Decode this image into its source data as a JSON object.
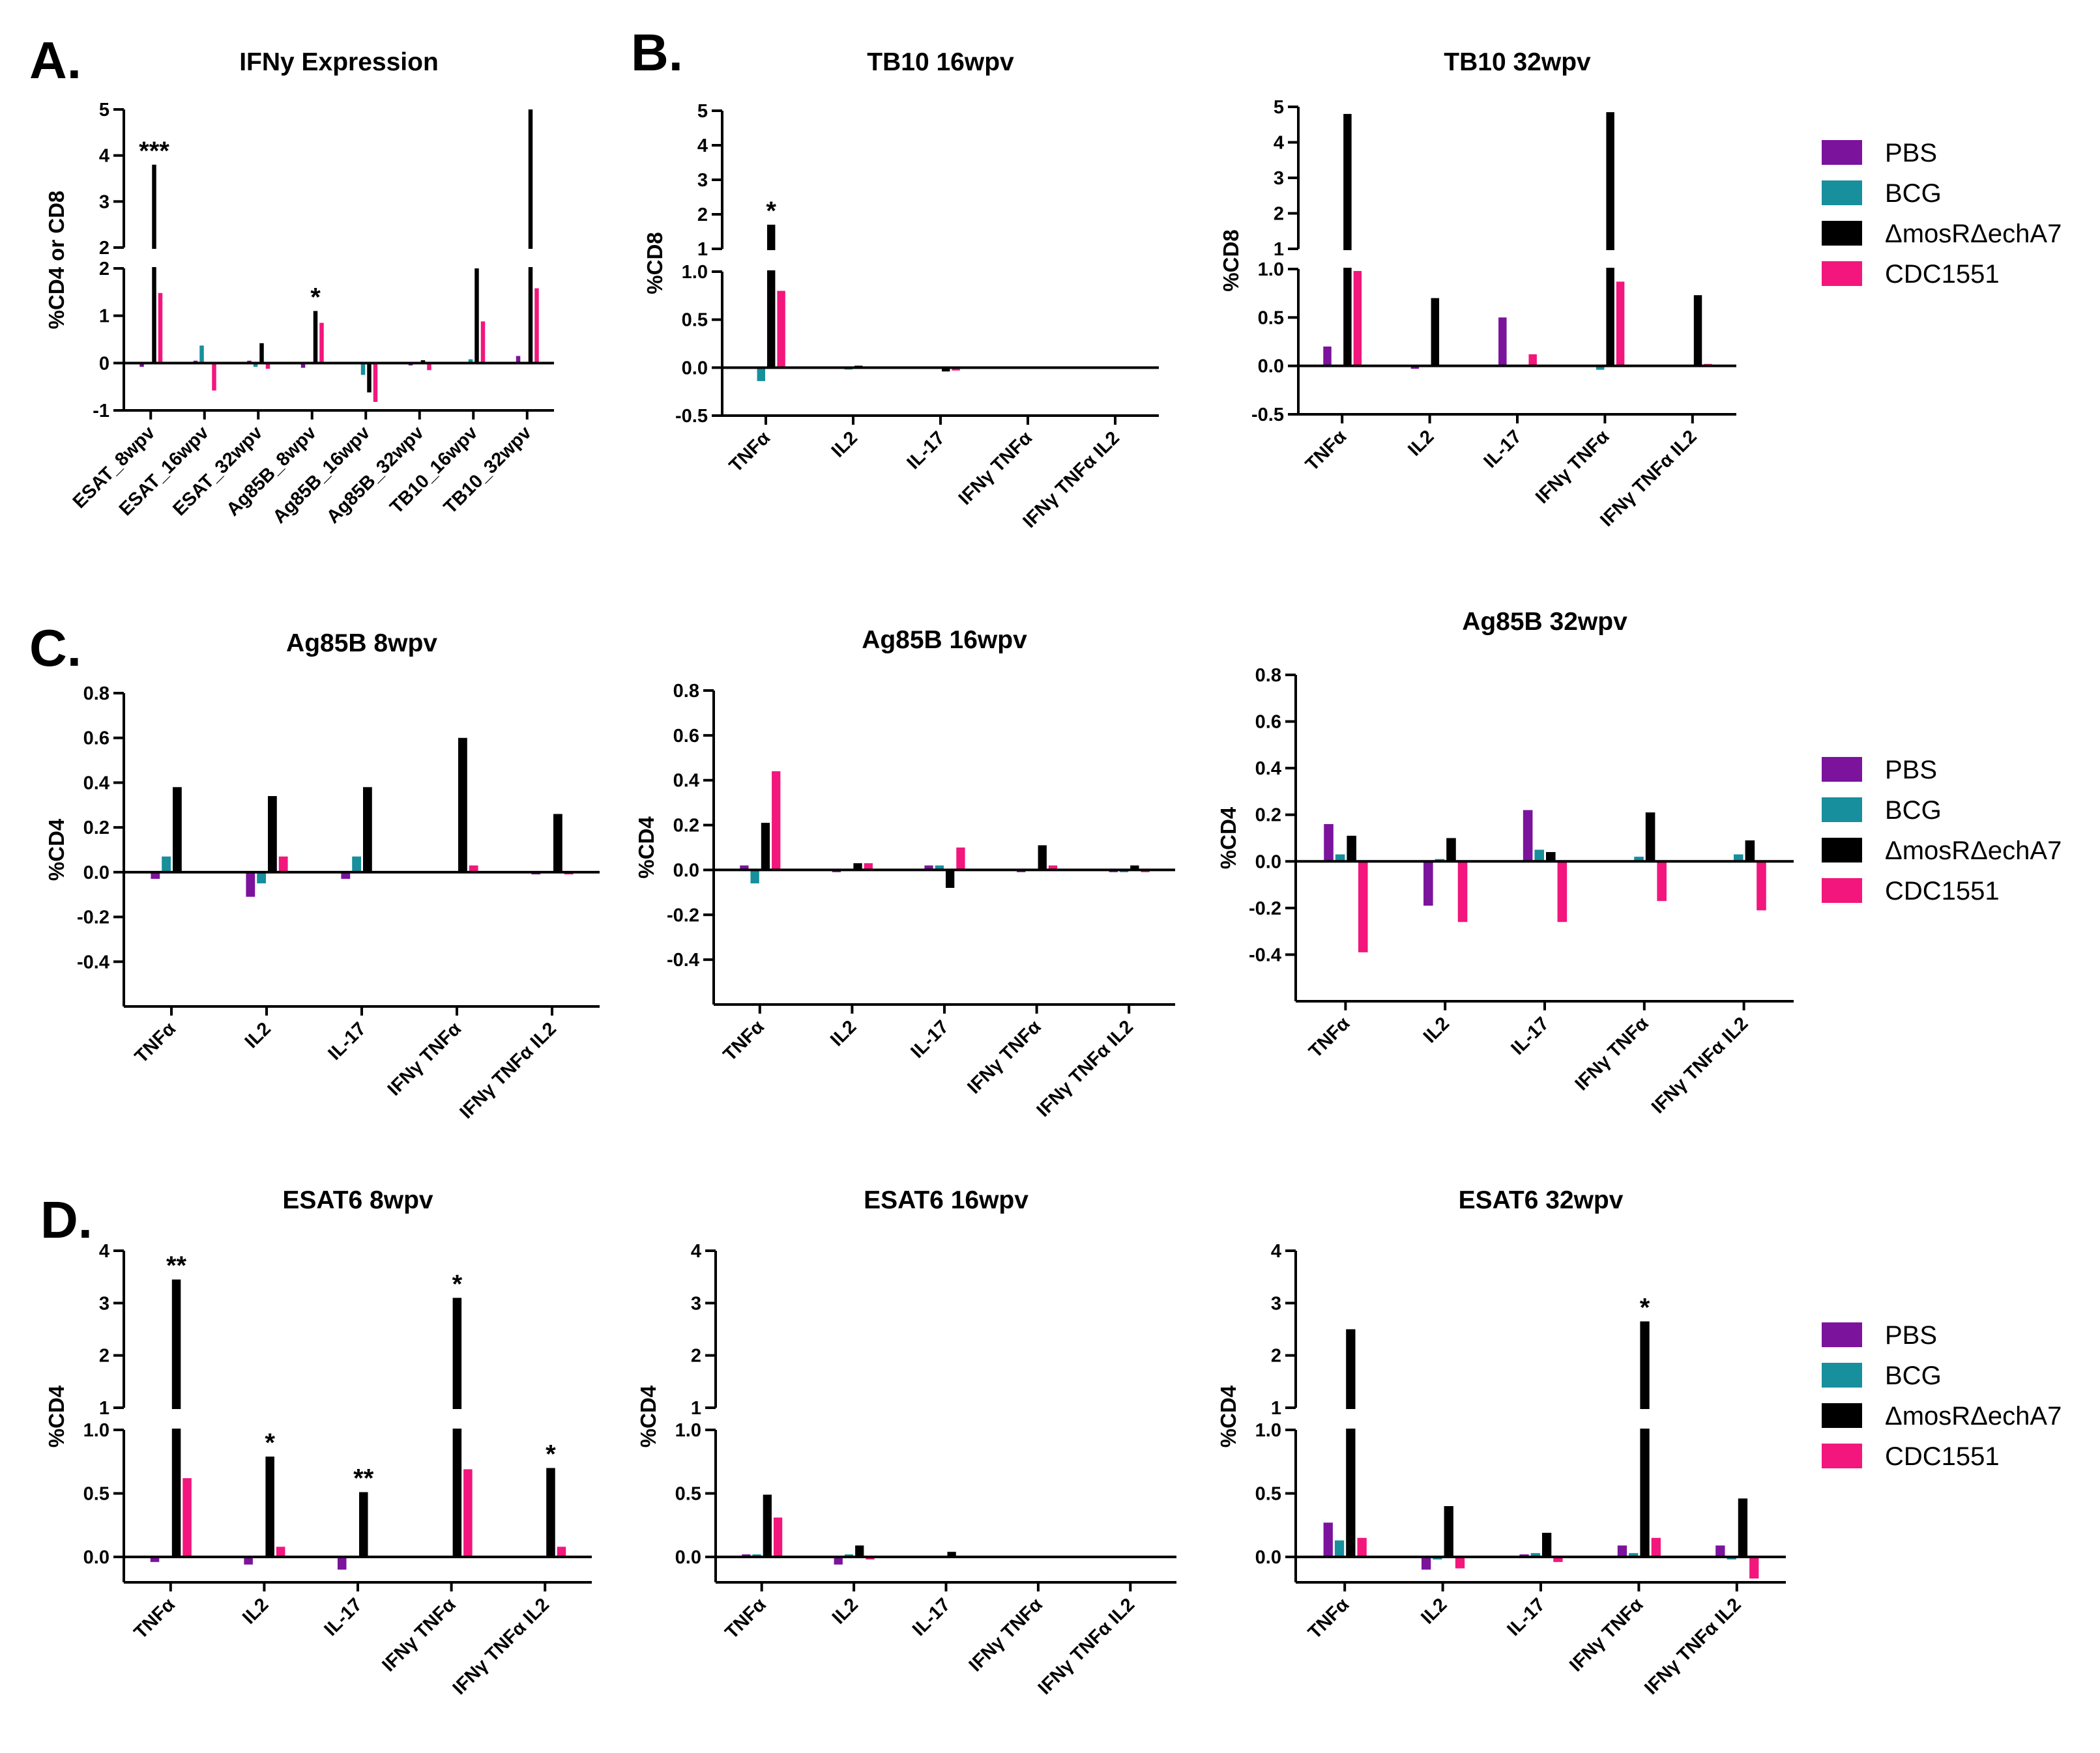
{
  "colors": {
    "PBS": "#7b139c",
    "BCG": "#178f9c",
    "mut": "#000000",
    "CDC": "#f2167d"
  },
  "panel_letters": [
    "A.",
    "B.",
    "C.",
    "D."
  ],
  "legend": {
    "items": [
      {
        "key": "PBS",
        "label": "PBS"
      },
      {
        "key": "BCG",
        "label": "BCG"
      },
      {
        "key": "mut",
        "label": "ΔmosRΔechA7"
      },
      {
        "key": "CDC",
        "label": "CDC1551"
      }
    ]
  },
  "chart_data": [
    {
      "id": "A",
      "type": "bar",
      "title": "IFNy Expression",
      "ylabel": "%CD4 or CD8",
      "categories": [
        "ESAT_8wpv",
        "ESAT_16wpv",
        "ESAT_32wpv",
        "Ag85B_8wpv",
        "Ag85B_16wpv",
        "Ag85B_32wpv",
        "TB10_16wpv",
        "TB10_32wpv"
      ],
      "ylim_lower": [
        -1,
        2
      ],
      "ylim_upper": [
        2,
        5
      ],
      "yticks_lower": [
        "-1",
        "0",
        "1",
        "2"
      ],
      "yticks_upper": [
        "2",
        "3",
        "4",
        "5"
      ],
      "series": [
        {
          "name": "PBS",
          "values": [
            -0.08,
            0.05,
            0.05,
            -0.1,
            0.02,
            -0.05,
            0.02,
            0.15
          ]
        },
        {
          "name": "BCG",
          "values": [
            0.02,
            0.37,
            -0.08,
            0.0,
            -0.25,
            0.02,
            0.08,
            0.02
          ]
        },
        {
          "name": "ΔmosRΔechA7",
          "values": [
            3.8,
            0.02,
            0.42,
            1.1,
            -0.62,
            0.06,
            2.0,
            5.0
          ]
        },
        {
          "name": "CDC1551",
          "values": [
            1.48,
            -0.58,
            -0.12,
            0.85,
            -0.82,
            -0.15,
            0.88,
            1.58
          ]
        }
      ],
      "annotations": [
        {
          "cat": 0,
          "text": "***"
        },
        {
          "cat": 3,
          "text": "*"
        }
      ]
    },
    {
      "id": "B1",
      "type": "bar",
      "title": "TB10 16wpv",
      "ylabel": "%CD8",
      "categories": [
        "TNFα",
        "IL2",
        "IL-17",
        "IFNγ TNFα",
        "IFNγ TNFα IL2"
      ],
      "ylim_lower": [
        -0.5,
        1.0
      ],
      "ylim_upper": [
        1,
        5
      ],
      "yticks_lower": [
        "-0.5",
        "0.0",
        "0.5",
        "1.0"
      ],
      "yticks_upper": [
        "1",
        "2",
        "3",
        "4",
        "5"
      ],
      "series": [
        {
          "name": "PBS",
          "values": [
            -0.01,
            0.0,
            0.0,
            0.0,
            0.0
          ]
        },
        {
          "name": "BCG",
          "values": [
            -0.14,
            -0.02,
            -0.01,
            0.0,
            0.0
          ]
        },
        {
          "name": "ΔmosRΔechA7",
          "values": [
            1.7,
            0.02,
            -0.04,
            0.0,
            0.0
          ]
        },
        {
          "name": "CDC1551",
          "values": [
            0.8,
            0.0,
            -0.03,
            0.0,
            0.0
          ]
        }
      ],
      "annotations": [
        {
          "cat": 0,
          "text": "*"
        }
      ]
    },
    {
      "id": "B2",
      "type": "bar",
      "title": "TB10 32wpv",
      "ylabel": "%CD8",
      "categories": [
        "TNFα",
        "IL2",
        "IL-17",
        "IFNγ TNFα",
        "IFNγ TNFα IL2"
      ],
      "ylim_lower": [
        -0.5,
        1.0
      ],
      "ylim_upper": [
        1,
        5
      ],
      "yticks_lower": [
        "-0.5",
        "0.0",
        "0.5",
        "1.0"
      ],
      "yticks_upper": [
        "1",
        "2",
        "3",
        "4",
        "5"
      ],
      "series": [
        {
          "name": "PBS",
          "values": [
            0.2,
            -0.03,
            0.5,
            0.0,
            0.0
          ]
        },
        {
          "name": "BCG",
          "values": [
            0.0,
            0.01,
            0.01,
            -0.04,
            0.0
          ]
        },
        {
          "name": "ΔmosRΔechA7",
          "values": [
            4.8,
            0.7,
            0.0,
            4.85,
            0.73
          ]
        },
        {
          "name": "CDC1551",
          "values": [
            0.98,
            0.01,
            0.12,
            0.87,
            0.02
          ]
        }
      ],
      "annotations": []
    },
    {
      "id": "C1",
      "type": "bar",
      "title": "Ag85B 8wpv",
      "ylabel": "%CD4",
      "categories": [
        "TNFα",
        "IL2",
        "IL-17",
        "IFNγ TNFα",
        "IFNγ TNFα IL2"
      ],
      "ylim": [
        -0.6,
        0.8
      ],
      "yticks": [
        "-0.4",
        "-0.2",
        "0.0",
        "0.2",
        "0.4",
        "0.6",
        "0.8"
      ],
      "series": [
        {
          "name": "PBS",
          "values": [
            -0.03,
            -0.11,
            -0.03,
            0.0,
            -0.01
          ]
        },
        {
          "name": "BCG",
          "values": [
            0.07,
            -0.05,
            0.07,
            0.0,
            0.0
          ]
        },
        {
          "name": "ΔmosRΔechA7",
          "values": [
            0.38,
            0.34,
            0.38,
            0.6,
            0.26
          ]
        },
        {
          "name": "CDC1551",
          "values": [
            0.0,
            0.07,
            0.0,
            0.03,
            -0.01
          ]
        }
      ],
      "annotations": []
    },
    {
      "id": "C2",
      "type": "bar",
      "title": "Ag85B 16wpv",
      "ylabel": "%CD4",
      "categories": [
        "TNFα",
        "IL2",
        "IL-17",
        "IFNγ TNFα",
        "IFNγ TNFα IL2"
      ],
      "ylim": [
        -0.6,
        0.8
      ],
      "yticks": [
        "-0.4",
        "-0.2",
        "0.0",
        "0.2",
        "0.4",
        "0.6",
        "0.8"
      ],
      "series": [
        {
          "name": "PBS",
          "values": [
            0.02,
            -0.01,
            0.02,
            -0.01,
            -0.01
          ]
        },
        {
          "name": "BCG",
          "values": [
            -0.06,
            0.0,
            0.02,
            0.0,
            -0.01
          ]
        },
        {
          "name": "ΔmosRΔechA7",
          "values": [
            0.21,
            0.03,
            -0.08,
            0.11,
            0.02
          ]
        },
        {
          "name": "CDC1551",
          "values": [
            0.44,
            0.03,
            0.1,
            0.02,
            -0.01
          ]
        }
      ],
      "annotations": []
    },
    {
      "id": "C3",
      "type": "bar",
      "title": "Ag85B 32wpv",
      "ylabel": "%CD4",
      "categories": [
        "TNFα",
        "IL2",
        "IL-17",
        "IFNγ TNFα",
        "IFNγ TNFα IL2"
      ],
      "ylim": [
        -0.6,
        0.8
      ],
      "yticks": [
        "-0.4",
        "-0.2",
        "0.0",
        "0.2",
        "0.4",
        "0.6",
        "0.8"
      ],
      "series": [
        {
          "name": "PBS",
          "values": [
            0.16,
            -0.19,
            0.22,
            0.0,
            0.0
          ]
        },
        {
          "name": "BCG",
          "values": [
            0.03,
            0.01,
            0.05,
            0.02,
            0.03
          ]
        },
        {
          "name": "ΔmosRΔechA7",
          "values": [
            0.11,
            0.1,
            0.04,
            0.21,
            0.09
          ]
        },
        {
          "name": "CDC1551",
          "values": [
            -0.39,
            -0.26,
            -0.26,
            -0.17,
            -0.21
          ]
        }
      ],
      "annotations": []
    },
    {
      "id": "D1",
      "type": "bar",
      "title": "ESAT6 8wpv",
      "ylabel": "%CD4",
      "categories": [
        "TNFα",
        "IL2",
        "IL-17",
        "IFNγ TNFα",
        "IFNγ TNFα IL2"
      ],
      "ylim_lower": [
        -0.2,
        1.0
      ],
      "ylim_upper": [
        1,
        4
      ],
      "yticks_lower": [
        "0.0",
        "0.5",
        "1.0"
      ],
      "yticks_upper": [
        "1",
        "2",
        "3",
        "4"
      ],
      "series": [
        {
          "name": "PBS",
          "values": [
            -0.04,
            -0.06,
            -0.1,
            0.0,
            0.01
          ]
        },
        {
          "name": "BCG",
          "values": [
            0.01,
            0.0,
            0.01,
            0.0,
            0.0
          ]
        },
        {
          "name": "ΔmosRΔechA7",
          "values": [
            3.45,
            0.79,
            0.51,
            3.1,
            0.7
          ]
        },
        {
          "name": "CDC1551",
          "values": [
            0.62,
            0.08,
            0.01,
            0.69,
            0.08
          ]
        }
      ],
      "annotations": [
        {
          "cat": 0,
          "text": "**"
        },
        {
          "cat": 1,
          "text": "*"
        },
        {
          "cat": 2,
          "text": "**"
        },
        {
          "cat": 3,
          "text": "*"
        },
        {
          "cat": 4,
          "text": "*"
        }
      ]
    },
    {
      "id": "D2",
      "type": "bar",
      "title": "ESAT6 16wpv",
      "ylabel": "%CD4",
      "categories": [
        "TNFα",
        "IL2",
        "IL-17",
        "IFNγ TNFα",
        "IFNγ TNFα IL2"
      ],
      "ylim_lower": [
        -0.2,
        1.0
      ],
      "ylim_upper": [
        1,
        4
      ],
      "yticks_lower": [
        "0.0",
        "0.5",
        "1.0"
      ],
      "yticks_upper": [
        "1",
        "2",
        "3",
        "4"
      ],
      "series": [
        {
          "name": "PBS",
          "values": [
            0.02,
            -0.06,
            0.0,
            0.0,
            0.0
          ]
        },
        {
          "name": "BCG",
          "values": [
            0.02,
            0.02,
            0.0,
            0.0,
            0.0
          ]
        },
        {
          "name": "ΔmosRΔechA7",
          "values": [
            0.49,
            0.09,
            0.04,
            0.0,
            0.0
          ]
        },
        {
          "name": "CDC1551",
          "values": [
            0.31,
            -0.02,
            0.0,
            0.0,
            0.0
          ]
        }
      ],
      "annotations": []
    },
    {
      "id": "D3",
      "type": "bar",
      "title": "ESAT6 32wpv",
      "ylabel": "%CD4",
      "categories": [
        "TNFα",
        "IL2",
        "IL-17",
        "IFNγ TNFα",
        "IFNγ TNFα IL2"
      ],
      "ylim_lower": [
        -0.2,
        1.0
      ],
      "ylim_upper": [
        1,
        4
      ],
      "yticks_lower": [
        "0.0",
        "0.5",
        "1.0"
      ],
      "yticks_upper": [
        "1",
        "2",
        "3",
        "4"
      ],
      "series": [
        {
          "name": "PBS",
          "values": [
            0.27,
            -0.1,
            0.02,
            0.09,
            0.09
          ]
        },
        {
          "name": "BCG",
          "values": [
            0.13,
            -0.02,
            0.03,
            0.03,
            -0.02
          ]
        },
        {
          "name": "ΔmosRΔechA7",
          "values": [
            2.5,
            0.4,
            0.19,
            2.65,
            0.46
          ]
        },
        {
          "name": "CDC1551",
          "values": [
            0.15,
            -0.09,
            -0.04,
            0.15,
            -0.17
          ]
        }
      ],
      "annotations": [
        {
          "cat": 3,
          "text": "*"
        }
      ]
    }
  ]
}
